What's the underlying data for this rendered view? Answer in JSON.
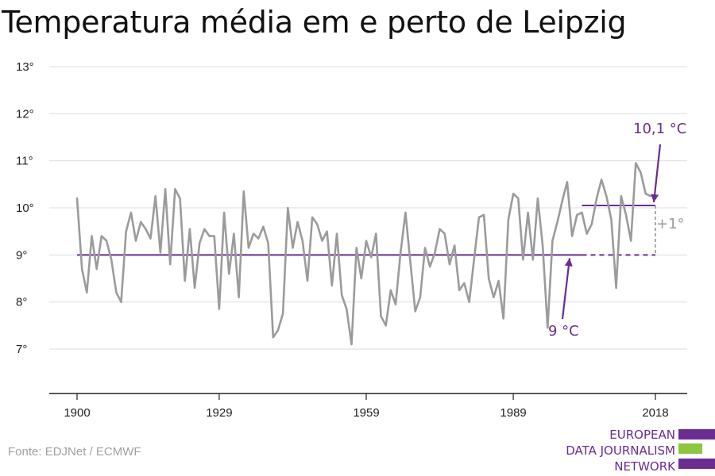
{
  "title": "Temperatura média em e perto de Leipzig",
  "source": "Fonte: EDJNet / ECMWF",
  "logo": {
    "lines": [
      "EUROPEAN",
      "DATA JOURNALISM",
      "NETWORK"
    ],
    "colors": [
      "#6a2c91",
      "#8dc63f",
      "#6a2c91"
    ]
  },
  "colors": {
    "series": "#9b9b9b",
    "accent": "#6a2c91",
    "grid": "#dddddd",
    "axis": "#222222"
  },
  "chart_data": {
    "type": "line",
    "title": "Temperatura média em e perto de Leipzig",
    "xlabel": "",
    "ylabel": "",
    "xlim": [
      1900,
      2018
    ],
    "ylim": [
      6,
      13
    ],
    "grid": true,
    "x_ticks": [
      1900,
      1929,
      1959,
      1989,
      2018
    ],
    "x_tick_labels": [
      "1900",
      "1929",
      "1959",
      "1989",
      "2018"
    ],
    "y_ticks": [
      7,
      8,
      9,
      10,
      11,
      12,
      13
    ],
    "y_tick_labels": [
      "7°",
      "8°",
      "9°",
      "10°",
      "11°",
      "12°",
      "13°"
    ],
    "series": [
      {
        "x": [
          1900,
          1901,
          1902,
          1903,
          1904,
          1905,
          1906,
          1907,
          1908,
          1909,
          1910,
          1911,
          1912,
          1913,
          1914,
          1915,
          1916,
          1917,
          1918,
          1919,
          1920,
          1921,
          1922,
          1923,
          1924,
          1925,
          1926,
          1927,
          1928,
          1929,
          1930,
          1931,
          1932,
          1933,
          1934,
          1935,
          1936,
          1937,
          1938,
          1939,
          1940,
          1941,
          1942,
          1943,
          1944,
          1945,
          1946,
          1947,
          1948,
          1949,
          1950,
          1951,
          1952,
          1953,
          1954,
          1955,
          1956,
          1957,
          1958,
          1959,
          1960,
          1961,
          1962,
          1963,
          1964,
          1965,
          1966,
          1967,
          1968,
          1969,
          1970,
          1971,
          1972,
          1973,
          1974,
          1975,
          1976,
          1977,
          1978,
          1979,
          1980,
          1981,
          1982,
          1983,
          1984,
          1985,
          1986,
          1987,
          1988,
          1989,
          1990,
          1991,
          1992,
          1993,
          1994,
          1995,
          1996,
          1997,
          1998,
          1999,
          2000,
          2001,
          2002,
          2003,
          2004,
          2005,
          2006,
          2007,
          2008,
          2009,
          2010,
          2011,
          2012,
          2013,
          2014,
          2015,
          2016,
          2017
        ],
        "values": [
          10.2,
          8.7,
          8.2,
          9.4,
          8.7,
          9.4,
          9.3,
          8.9,
          8.2,
          8.0,
          9.5,
          9.9,
          9.3,
          9.7,
          9.55,
          9.35,
          10.25,
          9.05,
          10.4,
          8.8,
          10.4,
          10.2,
          8.45,
          9.55,
          8.3,
          9.25,
          9.55,
          9.4,
          9.4,
          7.85,
          9.9,
          8.6,
          9.45,
          8.1,
          10.35,
          9.15,
          9.45,
          9.35,
          9.6,
          9.25,
          7.25,
          7.4,
          7.75,
          10.0,
          9.15,
          9.7,
          9.3,
          8.45,
          9.8,
          9.65,
          9.3,
          9.5,
          8.35,
          9.45,
          8.15,
          7.85,
          7.1,
          9.15,
          8.5,
          9.3,
          8.95,
          9.45,
          7.7,
          7.5,
          8.25,
          7.95,
          9.05,
          9.9,
          8.85,
          7.8,
          8.1,
          9.15,
          8.75,
          9.05,
          9.55,
          9.45,
          8.8,
          9.2,
          8.25,
          8.4,
          8.0,
          8.9,
          9.8,
          9.85,
          8.5,
          8.1,
          8.45,
          7.65,
          9.75,
          10.3,
          10.2,
          8.9,
          9.9,
          8.9,
          10.2,
          9.2,
          7.45,
          9.3,
          9.7,
          10.15,
          10.55,
          9.4,
          9.85,
          9.9,
          9.45,
          9.65,
          10.2,
          10.6,
          10.25,
          9.75,
          8.3,
          10.25,
          9.85,
          9.3,
          10.95,
          10.75,
          10.3,
          10.25
        ]
      }
    ],
    "reference_lines": [
      {
        "label": "9 °C",
        "value": 9.0,
        "x_start": 1900,
        "x_end": 2003,
        "dashed_to": 2018
      },
      {
        "label": "10,1 °C",
        "value": 10.05,
        "x_start": 2003,
        "x_end": 2018
      }
    ],
    "annotations": [
      {
        "text": "10,1 °C",
        "color": "#6a2c91"
      },
      {
        "text": "9 °C",
        "color": "#6a2c91"
      },
      {
        "text": "+1°",
        "color": "#9a9a9a"
      }
    ]
  }
}
